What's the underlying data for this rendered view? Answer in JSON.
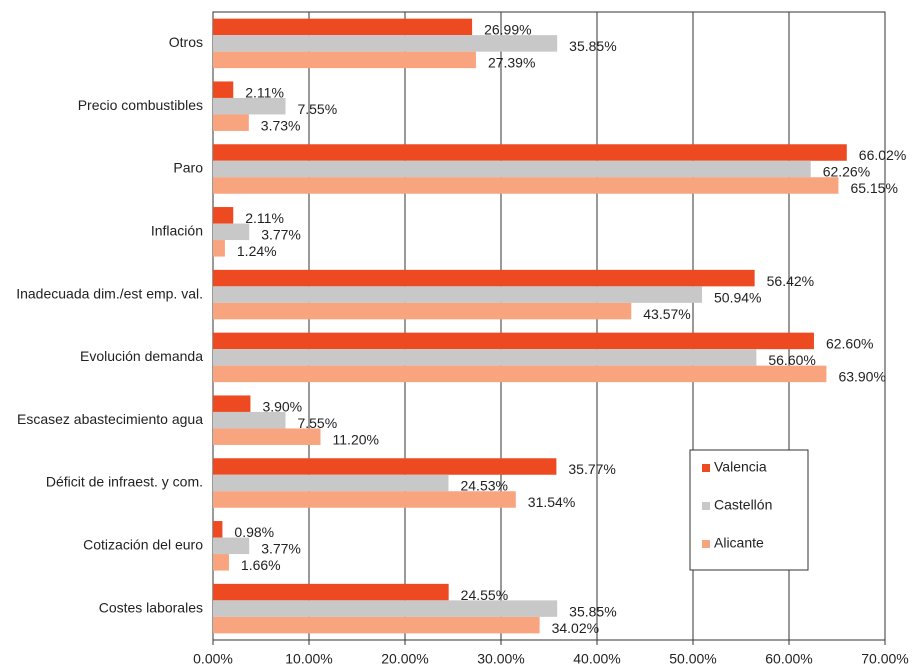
{
  "chart_data": {
    "type": "hbar",
    "categories": [
      "Otros",
      "Precio combustibles",
      "Paro",
      "Inflación",
      "Inadecuada dim./est emp. val.",
      "Evolución demanda",
      "Escasez abastecimiento agua",
      "Déficit de infraest. y com.",
      "Cotización del euro",
      "Costes laborales"
    ],
    "series": [
      {
        "name": "Valencia",
        "color": "#ee4a22",
        "values": [
          26.99,
          2.11,
          66.02,
          2.11,
          56.42,
          62.6,
          3.9,
          35.77,
          0.98,
          24.55
        ],
        "value_labels": [
          "26.99%",
          "2.11%",
          "66.02%",
          "2.11%",
          "56.42%",
          "62.60%",
          "3.90%",
          "35.77%",
          "0.98%",
          "24.55%"
        ]
      },
      {
        "name": "Castellón",
        "color": "#c8c8c8",
        "values": [
          35.85,
          7.55,
          62.26,
          3.77,
          50.94,
          56.6,
          7.55,
          24.53,
          3.77,
          35.85
        ],
        "value_labels": [
          "35.85%",
          "7.55%",
          "62.26%",
          "3.77%",
          "50.94%",
          "56.60%",
          "7.55%",
          "24.53%",
          "3.77%",
          "35.85%"
        ]
      },
      {
        "name": "Alicante",
        "color": "#f7a47f",
        "values": [
          27.39,
          3.73,
          65.15,
          1.24,
          43.57,
          63.9,
          11.2,
          31.54,
          1.66,
          34.02
        ],
        "value_labels": [
          "27.39%",
          "3.73%",
          "65.15%",
          "1.24%",
          "43.57%",
          "63.90%",
          "11.20%",
          "31.54%",
          "1.66%",
          "34.02%"
        ]
      }
    ],
    "xlim": [
      0,
      70
    ],
    "xticks": [
      {
        "value": 0,
        "label": "0.00%"
      },
      {
        "value": 10,
        "label": "10.00%"
      },
      {
        "value": 20,
        "label": "20.00%"
      },
      {
        "value": 30,
        "label": "30.00%"
      },
      {
        "value": 40,
        "label": "40.00%"
      },
      {
        "value": 50,
        "label": "50.00%"
      },
      {
        "value": 60,
        "label": "60.00%"
      },
      {
        "value": 70,
        "label": "70.00%"
      }
    ],
    "grid": true,
    "legend": "lower-right"
  }
}
